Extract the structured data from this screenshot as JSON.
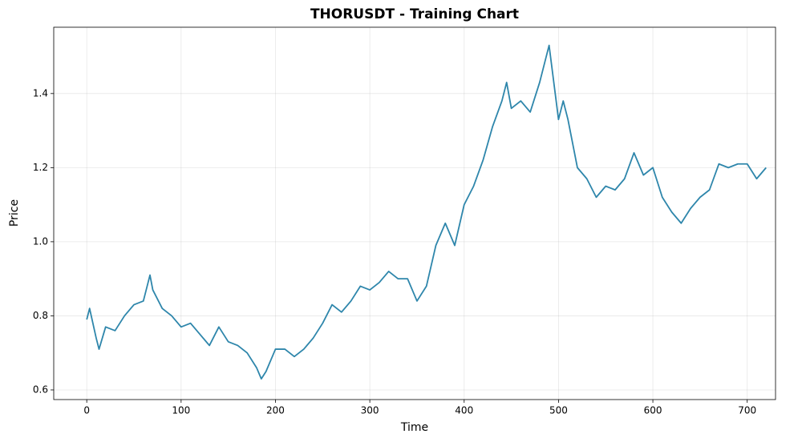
{
  "chart_data": {
    "type": "line",
    "title": "THORUSDT - Training Chart",
    "x_label": "Time",
    "y_label": "Price",
    "x": [
      0,
      3,
      10,
      13,
      20,
      30,
      40,
      50,
      60,
      67,
      70,
      80,
      90,
      100,
      110,
      120,
      130,
      140,
      150,
      160,
      170,
      180,
      185,
      190,
      200,
      210,
      220,
      230,
      240,
      250,
      260,
      270,
      280,
      290,
      300,
      310,
      320,
      330,
      340,
      350,
      360,
      370,
      380,
      390,
      400,
      410,
      420,
      430,
      440,
      445,
      450,
      460,
      470,
      480,
      490,
      500,
      505,
      510,
      520,
      530,
      540,
      550,
      560,
      570,
      580,
      590,
      600,
      610,
      620,
      630,
      640,
      650,
      660,
      670,
      680,
      690,
      700,
      710,
      720
    ],
    "series": [
      {
        "name": "THORUSDT",
        "color": "#2e86ab",
        "values": [
          0.79,
          0.82,
          0.74,
          0.71,
          0.77,
          0.76,
          0.8,
          0.83,
          0.84,
          0.91,
          0.87,
          0.82,
          0.8,
          0.77,
          0.78,
          0.75,
          0.72,
          0.77,
          0.73,
          0.72,
          0.7,
          0.66,
          0.63,
          0.65,
          0.71,
          0.71,
          0.69,
          0.71,
          0.74,
          0.78,
          0.83,
          0.81,
          0.84,
          0.88,
          0.87,
          0.89,
          0.92,
          0.9,
          0.9,
          0.84,
          0.88,
          0.99,
          1.05,
          0.99,
          1.1,
          1.15,
          1.22,
          1.31,
          1.38,
          1.43,
          1.36,
          1.38,
          1.35,
          1.43,
          1.53,
          1.33,
          1.38,
          1.33,
          1.2,
          1.17,
          1.12,
          1.15,
          1.14,
          1.17,
          1.24,
          1.18,
          1.2,
          1.12,
          1.08,
          1.05,
          1.09,
          1.12,
          1.14,
          1.21,
          1.2,
          1.21,
          1.21,
          1.17,
          1.2
        ]
      }
    ],
    "xlim": [
      -35,
      730
    ],
    "ylim": [
      0.574,
      1.579
    ],
    "xticks": [
      0,
      100,
      200,
      300,
      400,
      500,
      600,
      700
    ],
    "yticks": [
      0.6,
      0.8,
      {
        "value": 1,
        "label": "1.0"
      },
      1.2,
      1.4
    ],
    "grid": true
  }
}
